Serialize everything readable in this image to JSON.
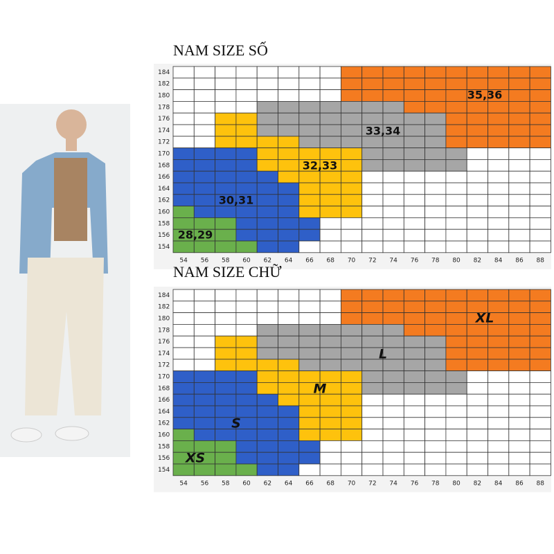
{
  "charts": [
    {
      "title": "NAM SIZE SỐ",
      "y_labels": [
        184,
        182,
        180,
        178,
        176,
        174,
        172,
        170,
        168,
        166,
        164,
        162,
        160,
        158,
        156,
        154
      ],
      "x_labels": [
        54,
        56,
        58,
        60,
        62,
        64,
        66,
        68,
        70,
        72,
        74,
        76,
        78,
        80,
        82,
        84,
        86,
        88
      ],
      "region_labels": [
        "35,36",
        "33,34",
        "32,33",
        "30,31",
        "28,29"
      ]
    },
    {
      "title": "NAM SIZE CHỮ",
      "y_labels": [
        184,
        182,
        180,
        178,
        176,
        174,
        172,
        170,
        168,
        166,
        164,
        162,
        160,
        158,
        156,
        154
      ],
      "x_labels": [
        54,
        56,
        58,
        60,
        62,
        64,
        66,
        68,
        70,
        72,
        74,
        76,
        78,
        80,
        82,
        84,
        86,
        88
      ],
      "region_labels": [
        "XL",
        "L",
        "M",
        "S",
        "XS"
      ]
    }
  ]
}
